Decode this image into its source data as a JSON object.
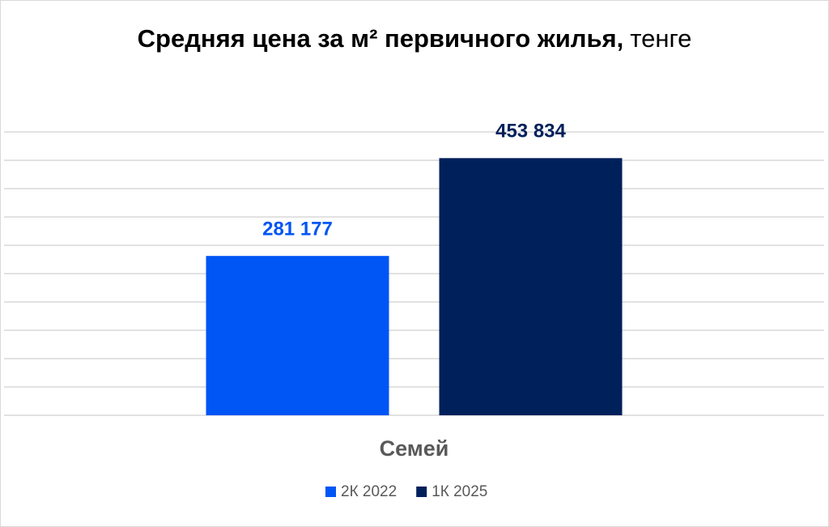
{
  "chart_data": {
    "type": "bar",
    "title": "Средняя цена за м² первичного жилья,",
    "title_unit": "тенге",
    "categories": [
      "Семей"
    ],
    "series": [
      {
        "name": "2К 2022",
        "color": "#0055f5",
        "values": [
          281177
        ],
        "value_labels": [
          "281 177"
        ]
      },
      {
        "name": "1К 2025",
        "color": "#00205b",
        "values": [
          453834
        ],
        "value_labels": [
          "453 834"
        ]
      }
    ],
    "ylim": [
      0,
      500000
    ],
    "yticks": [
      0,
      50000,
      100000,
      150000,
      200000,
      250000,
      300000,
      350000,
      400000,
      450000,
      500000
    ],
    "grid": true,
    "legend": "bottom"
  }
}
